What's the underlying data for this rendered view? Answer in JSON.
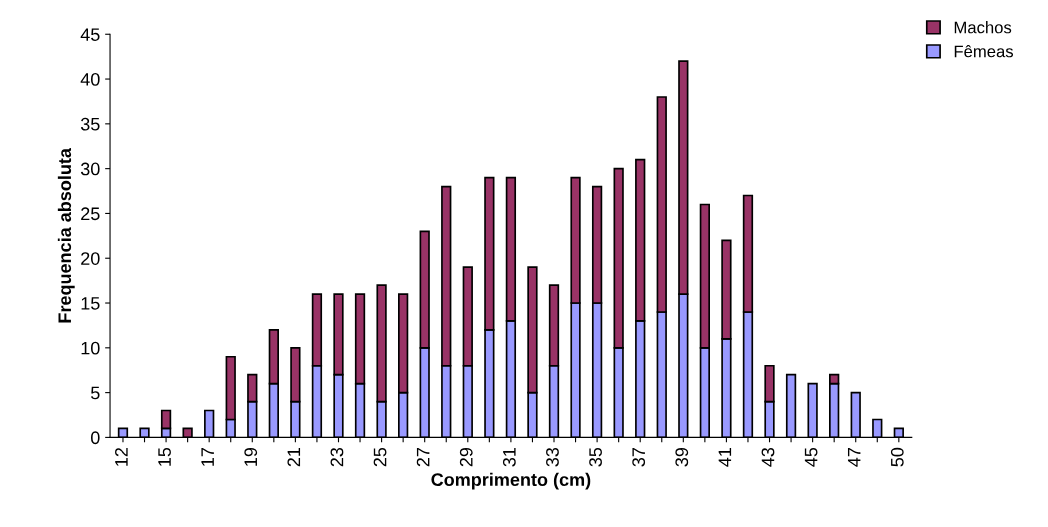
{
  "chart_data": {
    "type": "bar",
    "stacked": true,
    "xlabel": "Comprimento (cm)",
    "ylabel": "Frequencia absoluta",
    "categories": [
      "12",
      null,
      "15",
      null,
      "17",
      null,
      "19",
      null,
      "21",
      null,
      "23",
      null,
      "25",
      null,
      "27",
      null,
      "29",
      null,
      "31",
      null,
      "33",
      null,
      "35",
      null,
      "37",
      null,
      "39",
      null,
      "41",
      null,
      "43",
      null,
      "45",
      null,
      "47",
      null,
      "50"
    ],
    "series": [
      {
        "name": "Fêmeas",
        "color": "#9999ff",
        "values": [
          1,
          1,
          1,
          0,
          3,
          2,
          4,
          6,
          4,
          8,
          7,
          6,
          4,
          5,
          10,
          8,
          8,
          12,
          13,
          5,
          8,
          15,
          15,
          10,
          13,
          14,
          16,
          10,
          11,
          14,
          4,
          7,
          6,
          6,
          5,
          2,
          1
        ]
      },
      {
        "name": "Machos",
        "color": "#993366",
        "values": [
          0,
          0,
          2,
          1,
          0,
          7,
          3,
          6,
          6,
          8,
          9,
          10,
          13,
          11,
          13,
          20,
          11,
          17,
          16,
          14,
          9,
          14,
          13,
          20,
          18,
          24,
          26,
          16,
          11,
          13,
          4,
          0,
          0,
          1,
          0,
          0,
          0
        ]
      }
    ],
    "ylim": [
      0,
      45
    ],
    "yticks": [
      0,
      5,
      10,
      15,
      20,
      25,
      30,
      35,
      40,
      45
    ],
    "grid": false,
    "legend": "top right"
  }
}
